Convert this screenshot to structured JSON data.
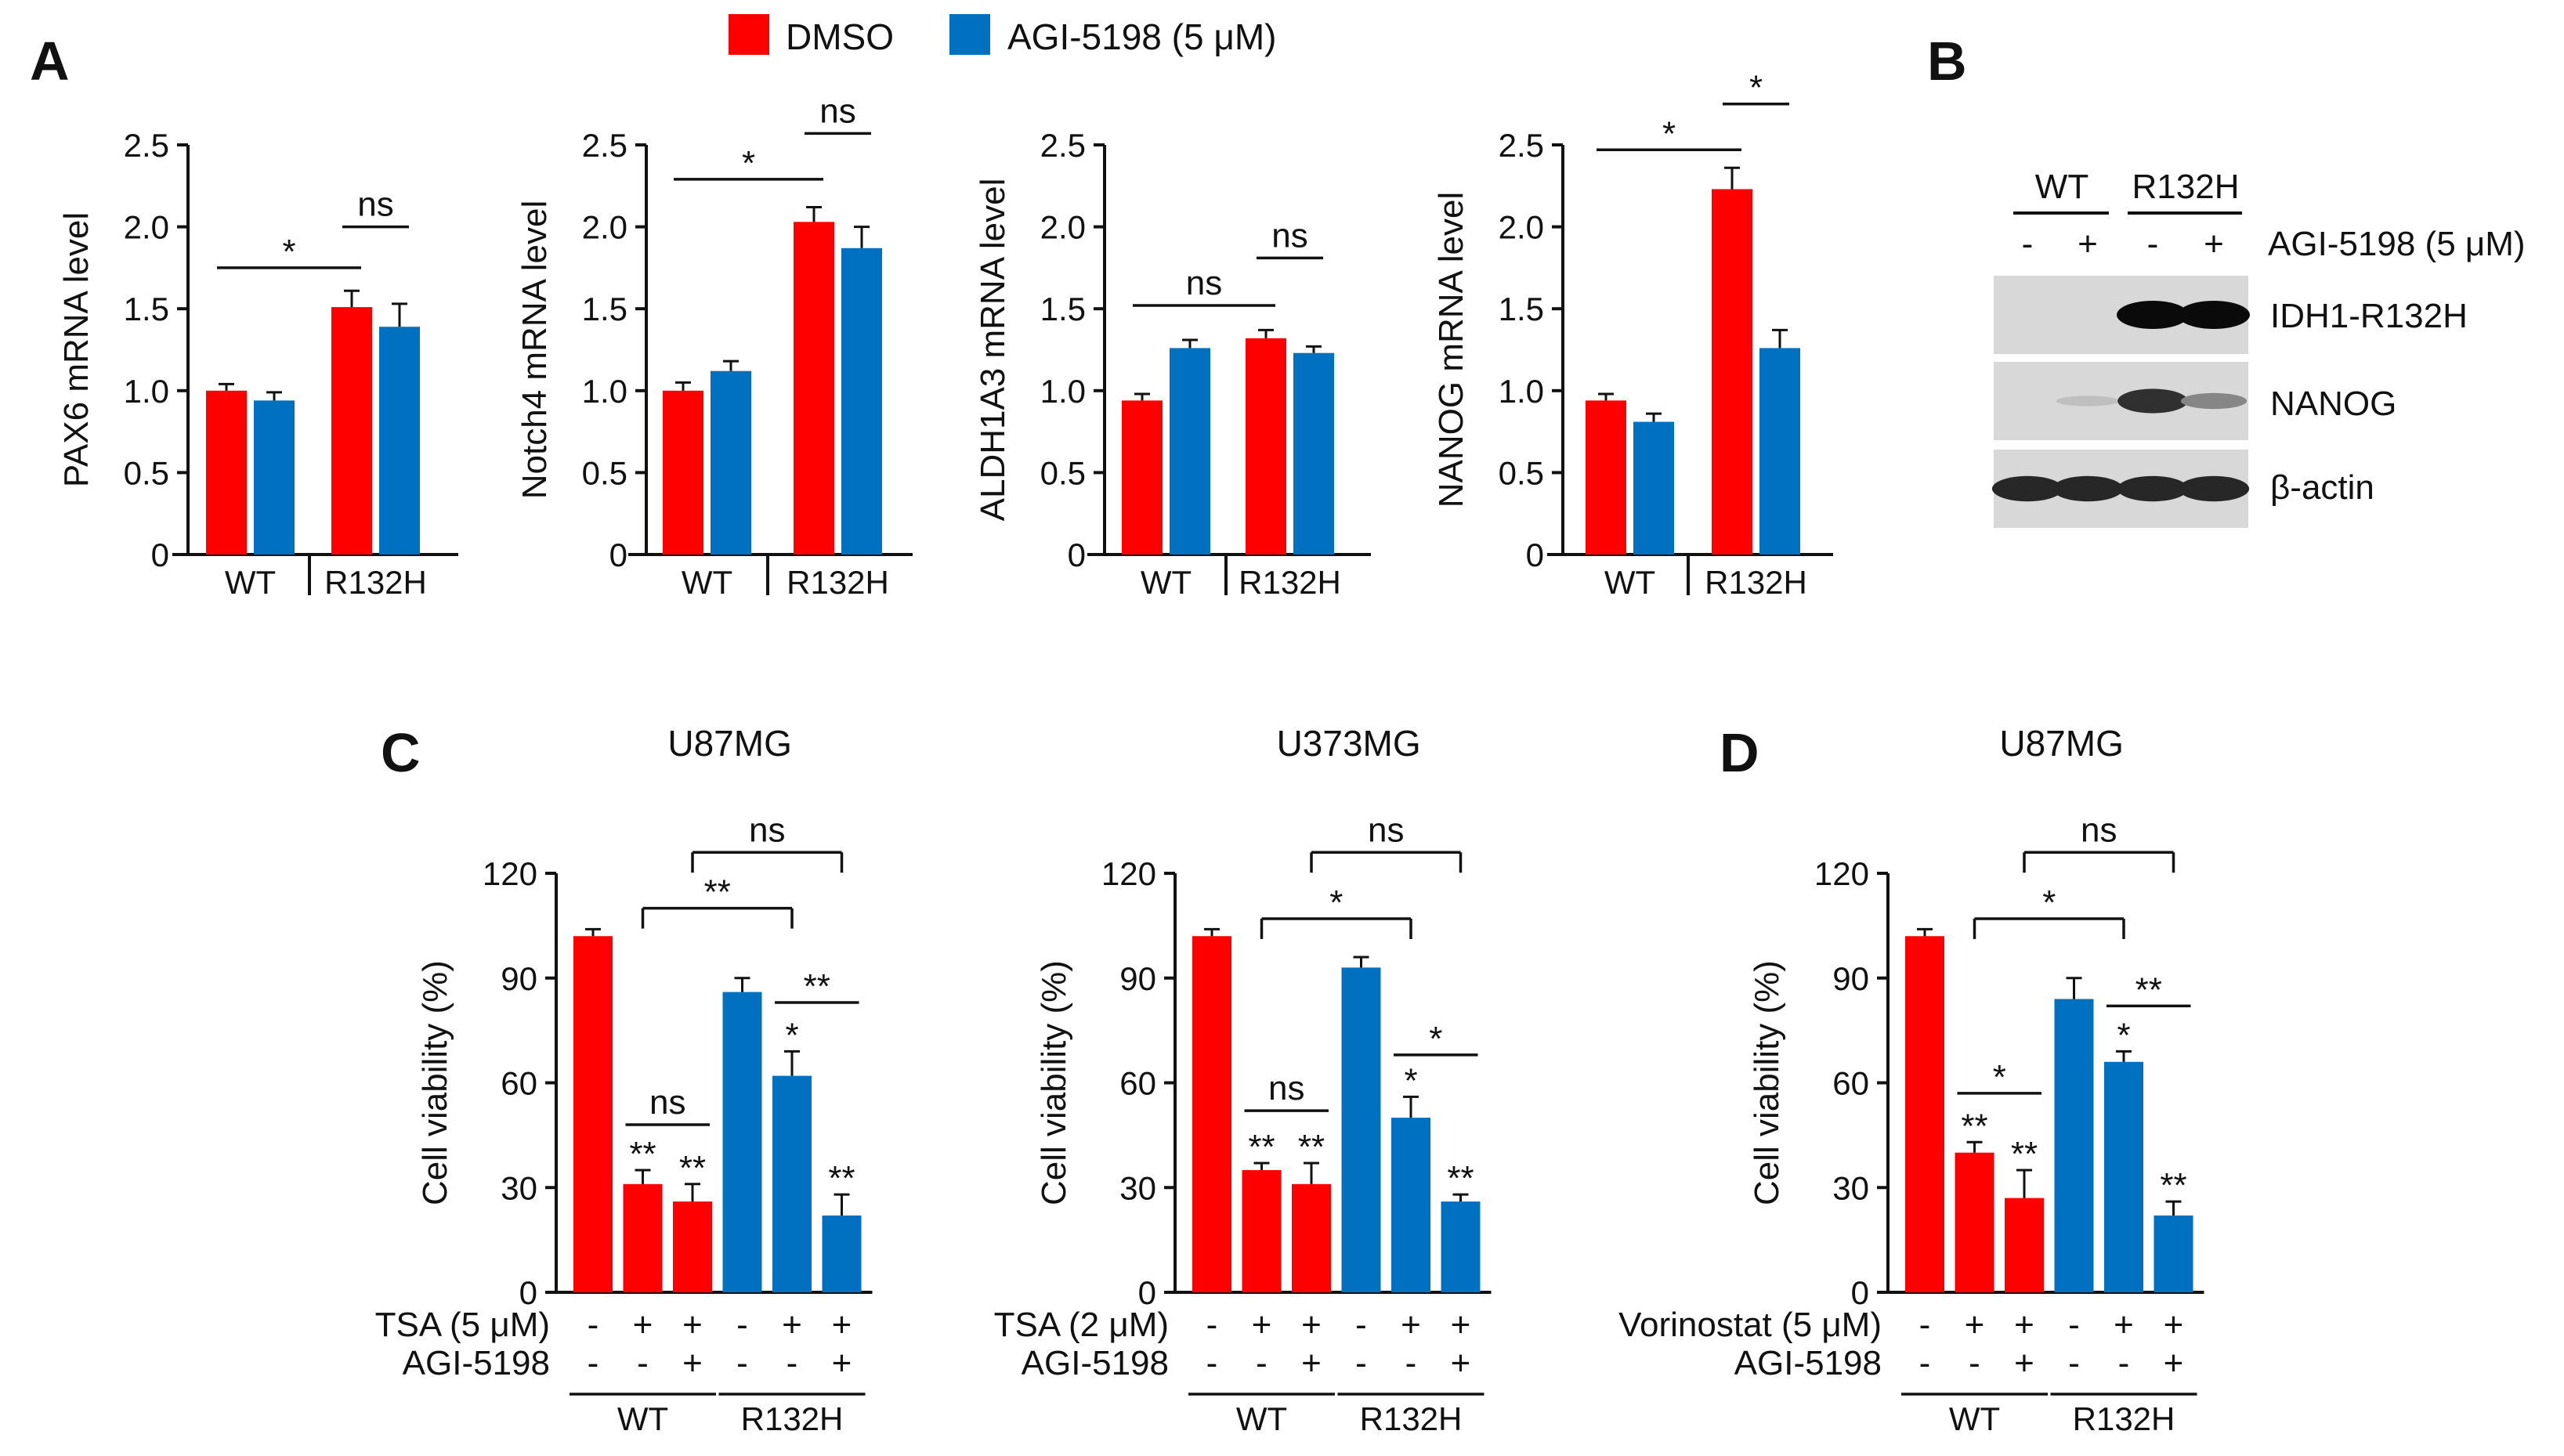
{
  "colors": {
    "dmso": "#ff0000",
    "agi": "#0070c0",
    "axis": "#111111"
  },
  "panel_labels": [
    "A",
    "B",
    "C",
    "D"
  ],
  "legend": [
    {
      "label": "DMSO",
      "color": "#ff0000"
    },
    {
      "label": "AGI-5198 (5 μM)",
      "color": "#0070c0"
    }
  ],
  "chart_data": [
    {
      "panel": "A",
      "type": "bar",
      "ylabel": "PAX6 mRNA level",
      "ylim": [
        0,
        2.5
      ],
      "yticks": [
        "0",
        "0.5",
        "1.0",
        "1.5",
        "2.0",
        "2.5"
      ],
      "groups": [
        "WT",
        "R132H"
      ],
      "series": [
        {
          "name": "DMSO",
          "color": "#ff0000",
          "values": [
            1.0,
            1.51
          ],
          "errors": [
            0.04,
            0.1
          ]
        },
        {
          "name": "AGI-5198 (5 μM)",
          "color": "#0070c0",
          "values": [
            0.94,
            1.39
          ],
          "errors": [
            0.05,
            0.14
          ]
        }
      ],
      "comparisons": [
        {
          "from": 0,
          "to": 2,
          "y": 1.75,
          "label": "*"
        },
        {
          "from": 2,
          "to": 3,
          "y": 2.0,
          "label": "ns"
        }
      ]
    },
    {
      "panel": "A",
      "type": "bar",
      "ylabel": "Notch4 mRNA level",
      "ylim": [
        0,
        2.5
      ],
      "yticks": [
        "0",
        "0.5",
        "1.0",
        "1.5",
        "2.0",
        "2.5"
      ],
      "groups": [
        "WT",
        "R132H"
      ],
      "series": [
        {
          "name": "DMSO",
          "color": "#ff0000",
          "values": [
            1.0,
            2.03
          ],
          "errors": [
            0.05,
            0.09
          ]
        },
        {
          "name": "AGI-5198 (5 μM)",
          "color": "#0070c0",
          "values": [
            1.12,
            1.87
          ],
          "errors": [
            0.06,
            0.13
          ]
        }
      ],
      "comparisons": [
        {
          "from": 0,
          "to": 2,
          "y": 2.29,
          "label": "*"
        },
        {
          "from": 2,
          "to": 3,
          "y": 2.57,
          "label": "ns"
        }
      ]
    },
    {
      "panel": "A",
      "type": "bar",
      "ylabel": "ALDH1A3 mRNA level",
      "ylim": [
        0,
        2.5
      ],
      "yticks": [
        "0",
        "0.5",
        "1.0",
        "1.5",
        "2.0",
        "2.5"
      ],
      "groups": [
        "WT",
        "R132H"
      ],
      "series": [
        {
          "name": "DMSO",
          "color": "#ff0000",
          "values": [
            0.94,
            1.32
          ],
          "errors": [
            0.04,
            0.05
          ]
        },
        {
          "name": "AGI-5198 (5 μM)",
          "color": "#0070c0",
          "values": [
            1.26,
            1.23
          ],
          "errors": [
            0.05,
            0.04
          ]
        }
      ],
      "comparisons": [
        {
          "from": 0,
          "to": 2,
          "y": 1.52,
          "label": "ns"
        },
        {
          "from": 2,
          "to": 3,
          "y": 1.81,
          "label": "ns"
        }
      ]
    },
    {
      "panel": "A",
      "type": "bar",
      "ylabel": "NANOG mRNA level",
      "ylim": [
        0,
        2.5
      ],
      "yticks": [
        "0",
        "0.5",
        "1.0",
        "1.5",
        "2.0",
        "2.5"
      ],
      "groups": [
        "WT",
        "R132H"
      ],
      "series": [
        {
          "name": "DMSO",
          "color": "#ff0000",
          "values": [
            0.94,
            2.23
          ],
          "errors": [
            0.04,
            0.13
          ]
        },
        {
          "name": "AGI-5198 (5 μM)",
          "color": "#0070c0",
          "values": [
            0.81,
            1.26
          ],
          "errors": [
            0.05,
            0.11
          ]
        }
      ],
      "comparisons": [
        {
          "from": 0,
          "to": 2,
          "y": 2.47,
          "label": "*"
        },
        {
          "from": 2,
          "to": 3,
          "y": 2.75,
          "label": "*"
        }
      ]
    },
    {
      "panel": "C",
      "type": "bar",
      "title": "U87MG",
      "ylabel": "Cell viability (%)",
      "ylim": [
        0,
        120
      ],
      "yticks": [
        "0",
        "30",
        "60",
        "90",
        "120"
      ],
      "treatment_labels": [
        "TSA (5 μM)",
        "AGI-5198"
      ],
      "signs": [
        [
          "-",
          "+",
          "+",
          "-",
          "+",
          "+"
        ],
        [
          "-",
          "-",
          "+",
          "-",
          "-",
          "+"
        ]
      ],
      "groups": [
        "WT",
        "R132H"
      ],
      "values": [
        102,
        31,
        26,
        86,
        62,
        22
      ],
      "errors": [
        2,
        4,
        5,
        4,
        7,
        6
      ],
      "colors": [
        "#ff0000",
        "#ff0000",
        "#ff0000",
        "#0070c0",
        "#0070c0",
        "#0070c0"
      ],
      "bar_labels": [
        "",
        "**",
        "**",
        "",
        "*",
        "**"
      ],
      "comparisons": [
        {
          "from": 1,
          "to": 2,
          "y": 48,
          "label": "ns"
        },
        {
          "from": 4,
          "to": 5,
          "y": 83,
          "label": "**"
        },
        {
          "from": 1,
          "to": 4,
          "y": 110,
          "label": "**"
        },
        {
          "from": 2,
          "to": 5,
          "y": 126,
          "label": "ns"
        }
      ]
    },
    {
      "panel": "C",
      "type": "bar",
      "title": "U373MG",
      "ylabel": "Cell viability (%)",
      "ylim": [
        0,
        120
      ],
      "yticks": [
        "0",
        "30",
        "60",
        "90",
        "120"
      ],
      "treatment_labels": [
        "TSA (2 μM)",
        "AGI-5198"
      ],
      "signs": [
        [
          "-",
          "+",
          "+",
          "-",
          "+",
          "+"
        ],
        [
          "-",
          "-",
          "+",
          "-",
          "-",
          "+"
        ]
      ],
      "groups": [
        "WT",
        "R132H"
      ],
      "values": [
        102,
        35,
        31,
        93,
        50,
        26
      ],
      "errors": [
        2,
        2,
        6,
        3,
        6,
        2
      ],
      "colors": [
        "#ff0000",
        "#ff0000",
        "#ff0000",
        "#0070c0",
        "#0070c0",
        "#0070c0"
      ],
      "bar_labels": [
        "",
        "**",
        "**",
        "",
        "*",
        "**"
      ],
      "comparisons": [
        {
          "from": 1,
          "to": 2,
          "y": 52,
          "label": "ns"
        },
        {
          "from": 4,
          "to": 5,
          "y": 68,
          "label": "*"
        },
        {
          "from": 1,
          "to": 4,
          "y": 107,
          "label": "*"
        },
        {
          "from": 2,
          "to": 5,
          "y": 126,
          "label": "ns"
        }
      ]
    },
    {
      "panel": "D",
      "type": "bar",
      "title": "U87MG",
      "ylabel": "Cell viability (%)",
      "ylim": [
        0,
        120
      ],
      "yticks": [
        "0",
        "30",
        "60",
        "90",
        "120"
      ],
      "treatment_labels": [
        "Vorinostat (5 μM)",
        "AGI-5198"
      ],
      "signs": [
        [
          "-",
          "+",
          "+",
          "-",
          "+",
          "+"
        ],
        [
          "-",
          "-",
          "+",
          "-",
          "-",
          "+"
        ]
      ],
      "groups": [
        "WT",
        "R132H"
      ],
      "values": [
        102,
        40,
        27,
        84,
        66,
        22
      ],
      "errors": [
        2,
        3,
        8,
        6,
        3,
        4
      ],
      "colors": [
        "#ff0000",
        "#ff0000",
        "#ff0000",
        "#0070c0",
        "#0070c0",
        "#0070c0"
      ],
      "bar_labels": [
        "",
        "**",
        "**",
        "",
        "*",
        "**"
      ],
      "comparisons": [
        {
          "from": 1,
          "to": 2,
          "y": 57,
          "label": "*"
        },
        {
          "from": 4,
          "to": 5,
          "y": 82,
          "label": "**"
        },
        {
          "from": 1,
          "to": 4,
          "y": 107,
          "label": "*"
        },
        {
          "from": 2,
          "to": 5,
          "y": 126,
          "label": "ns"
        }
      ]
    }
  ],
  "western_blot": {
    "group_labels": [
      "WT",
      "R132H"
    ],
    "treatment_label": "AGI-5198 (5 μM)",
    "signs": [
      "-",
      "+",
      "-",
      "+"
    ],
    "bands": [
      {
        "label": "IDH1-R132H",
        "intensity": [
          0,
          0,
          1.0,
          1.0
        ]
      },
      {
        "label": "NANOG",
        "intensity": [
          0,
          0.05,
          0.8,
          0.35
        ]
      },
      {
        "label": "β-actin",
        "intensity": [
          0.85,
          0.85,
          0.85,
          0.85
        ]
      }
    ]
  }
}
